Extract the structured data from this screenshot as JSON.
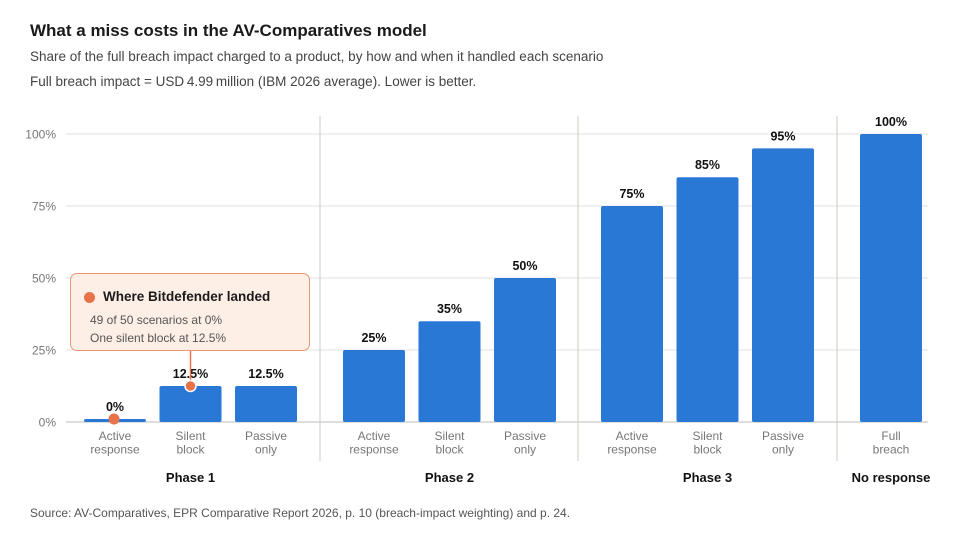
{
  "title": "What a miss costs in the AV-Comparatives model",
  "subtitle": "Share of the full breach impact charged to a product, by how and when it handled each scenario",
  "note": "Full breach impact = USD 4.99 million (IBM 2026 average). Lower is better.",
  "source": "Source: AV-Comparatives, EPR Comparative Report 2026, p. 10 (breach-impact weighting) and p. 24.",
  "callout": {
    "title": "Where Bitdefender landed",
    "line1": "49 of 50 scenarios at 0%",
    "line2": "One silent block at 12.5%"
  },
  "colors": {
    "bar": "#2a78d6",
    "highlight": "#e8734a",
    "callout_bg": "#fdeee6",
    "callout_border": "#e59a72",
    "grid": "#e2e2e2",
    "divider": "#cfcbbf"
  },
  "chart_data": {
    "type": "bar",
    "y_ticks": [
      "0%",
      "25%",
      "50%",
      "75%",
      "100%"
    ],
    "ylim": [
      0,
      100
    ],
    "grid": true,
    "groups": [
      {
        "name": "Phase 1",
        "categories": [
          [
            "Active",
            "response"
          ],
          [
            "Silent",
            "block"
          ],
          [
            "Passive",
            "only"
          ]
        ],
        "values": [
          0,
          12.5,
          12.5
        ],
        "labels": [
          "0%",
          "12.5%",
          "12.5%"
        ]
      },
      {
        "name": "Phase 2",
        "categories": [
          [
            "Active",
            "response"
          ],
          [
            "Silent",
            "block"
          ],
          [
            "Passive",
            "only"
          ]
        ],
        "values": [
          25,
          35,
          50
        ],
        "labels": [
          "25%",
          "35%",
          "50%"
        ]
      },
      {
        "name": "Phase 3",
        "categories": [
          [
            "Active",
            "response"
          ],
          [
            "Silent",
            "block"
          ],
          [
            "Passive",
            "only"
          ]
        ],
        "values": [
          75,
          85,
          95
        ],
        "labels": [
          "75%",
          "85%",
          "95%"
        ]
      },
      {
        "name": "No response",
        "categories": [
          [
            "Full",
            "breach"
          ]
        ],
        "values": [
          100
        ],
        "labels": [
          "100%"
        ]
      }
    ],
    "highlight": {
      "group": 0,
      "index": 0,
      "marker_group": 0,
      "marker_index": 1
    }
  }
}
